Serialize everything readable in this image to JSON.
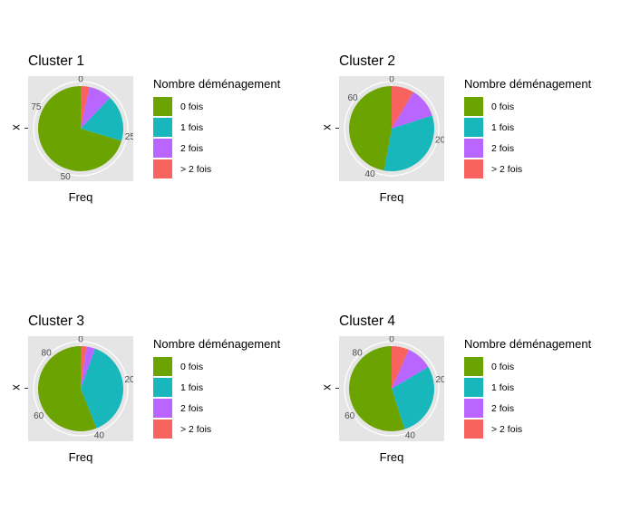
{
  "legend_title": "Nombre déménagement",
  "categories": [
    "0 fois",
    "1 fois",
    "2 fois",
    "> 2 fois"
  ],
  "colors": {
    "0 fois": "#6BA300",
    "1 fois": "#18B7BC",
    "2 fois": "#B965FF",
    "> 2 fois": "#F8635F"
  },
  "ylabel": "x",
  "xlabel": "Freq",
  "chart_data": [
    {
      "type": "pie",
      "title": "Cluster 1",
      "categories": [
        "0 fois",
        "1 fois",
        "2 fois",
        "> 2 fois"
      ],
      "values": [
        64,
        16,
        8,
        3
      ],
      "total": 91,
      "ticks": [
        0,
        25,
        50,
        75
      ]
    },
    {
      "type": "pie",
      "title": "Cluster 2",
      "categories": [
        "0 fois",
        "1 fois",
        "2 fois",
        "> 2 fois"
      ],
      "values": [
        33,
        23,
        8,
        6
      ],
      "total": 70,
      "ticks": [
        0,
        20,
        40,
        60
      ]
    },
    {
      "type": "pie",
      "title": "Cluster 3",
      "categories": [
        "0 fois",
        "1 fois",
        "2 fois",
        "> 2 fois"
      ],
      "values": [
        51,
        35,
        3,
        2
      ],
      "total": 91,
      "ticks": [
        0,
        20,
        40,
        60,
        80
      ]
    },
    {
      "type": "pie",
      "title": "Cluster 4",
      "categories": [
        "0 fois",
        "1 fois",
        "2 fois",
        "> 2 fois"
      ],
      "values": [
        50,
        26,
        9,
        6
      ],
      "total": 91,
      "ticks": [
        0,
        20,
        40,
        60,
        80
      ]
    }
  ]
}
